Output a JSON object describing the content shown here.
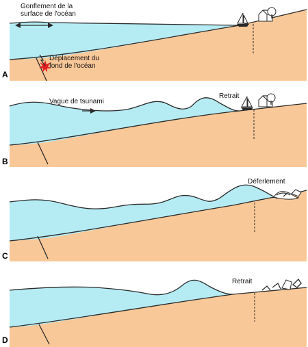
{
  "colors": {
    "ocean": "#b5ecf4",
    "seafloor": "#f9c898",
    "outline": "#2a2a2a",
    "boat_sail": "#ffffff",
    "burst": "#e02020",
    "background": "#ffffff"
  },
  "panels": [
    {
      "letter": "A",
      "labels": {
        "swell": "Gonflement de la\nsurface de l'océan",
        "seafloor_shift": "Déplacement du\nfond de l'océan"
      },
      "icons": [
        "double-arrow-icon",
        "burst-icon",
        "boat-icon",
        "house-icon",
        "tree-icon"
      ]
    },
    {
      "letter": "B",
      "labels": {
        "tsunami_wave": "Vague de tsunami",
        "retreat": "Retrait"
      },
      "icons": [
        "arrow-icon",
        "boat-icon",
        "house-icon",
        "tree-icon"
      ]
    },
    {
      "letter": "C",
      "labels": {
        "breaking": "Déferlement"
      },
      "icons": [
        "breaking-wave-icon",
        "debris-icon"
      ]
    },
    {
      "letter": "D",
      "labels": {
        "retreat": "Retrait"
      },
      "icons": [
        "debris-icon"
      ]
    }
  ]
}
